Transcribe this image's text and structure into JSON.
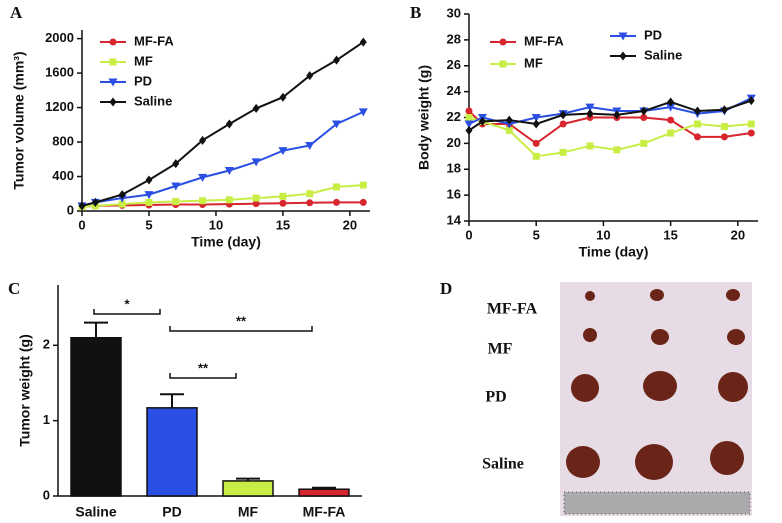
{
  "chart_data": [
    {
      "type": "line",
      "panel_label": "A",
      "xlabel": "Time (day)",
      "ylabel": "Tumor volume (mm³)",
      "x": [
        0,
        1,
        3,
        5,
        7,
        9,
        11,
        13,
        15,
        17,
        19,
        21
      ],
      "xlim": [
        0,
        21.5
      ],
      "xticks": [
        0,
        5,
        10,
        15,
        20
      ],
      "ylim": [
        0,
        2100
      ],
      "yticks": [
        0,
        400,
        800,
        1200,
        1600,
        2000
      ],
      "series": [
        {
          "name": "MF-FA",
          "color": "#d7262d",
          "marker": "circle",
          "values": [
            50,
            60,
            65,
            70,
            75,
            75,
            80,
            85,
            90,
            95,
            100,
            100
          ]
        },
        {
          "name": "MF",
          "color": "#c8ee45",
          "marker": "square",
          "values": [
            50,
            60,
            80,
            100,
            110,
            120,
            130,
            150,
            170,
            200,
            280,
            300
          ]
        },
        {
          "name": "PD",
          "color": "#2a4fe2",
          "marker": "triangle",
          "values": [
            60,
            100,
            150,
            190,
            290,
            390,
            470,
            570,
            700,
            760,
            1010,
            1150
          ]
        },
        {
          "name": "Saline",
          "color": "#111111",
          "marker": "diamond",
          "values": [
            60,
            100,
            190,
            360,
            550,
            820,
            1010,
            1190,
            1320,
            1570,
            1750,
            1960
          ]
        }
      ]
    },
    {
      "type": "line",
      "panel_label": "B",
      "xlabel": "Time (day)",
      "ylabel": "Body weight (g)",
      "x": [
        0,
        1,
        3,
        5,
        7,
        9,
        11,
        13,
        15,
        17,
        19,
        21
      ],
      "xlim": [
        0,
        21.5
      ],
      "xticks": [
        0,
        5,
        10,
        15,
        20
      ],
      "ylim": [
        14,
        30
      ],
      "yticks": [
        14,
        16,
        18,
        20,
        22,
        24,
        26,
        28,
        30
      ],
      "series": [
        {
          "name": "MF-FA",
          "color": "#d7262d",
          "marker": "circle",
          "values": [
            22.5,
            21.5,
            21.5,
            20,
            21.5,
            22,
            22,
            22,
            21.8,
            20.5,
            20.5,
            20.8
          ]
        },
        {
          "name": "MF",
          "color": "#c8ee45",
          "marker": "square",
          "values": [
            22,
            21.7,
            21,
            19,
            19.3,
            19.8,
            19.5,
            20,
            20.8,
            21.5,
            21.3,
            21.5
          ]
        },
        {
          "name": "PD",
          "color": "#2a4fe2",
          "marker": "triangle",
          "values": [
            21.5,
            22,
            21.5,
            22,
            22.3,
            22.8,
            22.5,
            22.5,
            22.8,
            22.3,
            22.5,
            23.5
          ]
        },
        {
          "name": "Saline",
          "color": "#111111",
          "marker": "diamond",
          "values": [
            21,
            21.7,
            21.8,
            21.5,
            22.2,
            22.3,
            22.2,
            22.5,
            23.2,
            22.5,
            22.6,
            23.3
          ]
        }
      ]
    },
    {
      "type": "bar",
      "panel_label": "C",
      "ylabel": "Tumor weight (g)",
      "categories": [
        "Saline",
        "PD",
        "MF",
        "MF-FA"
      ],
      "values": [
        2.1,
        1.17,
        0.2,
        0.09
      ],
      "errors": [
        0.2,
        0.18,
        0.03,
        0.02
      ],
      "colors": [
        "#111111",
        "#2a4fe2",
        "#c8ee45",
        "#d7262d"
      ],
      "ylim": [
        0,
        2.8
      ],
      "yticks": [
        0,
        1,
        2
      ],
      "annotations": [
        "*",
        "**",
        "**"
      ]
    }
  ],
  "photo": {
    "panel_label": "D",
    "rows": [
      "MF-FA",
      "MF",
      "PD",
      "Saline"
    ]
  }
}
